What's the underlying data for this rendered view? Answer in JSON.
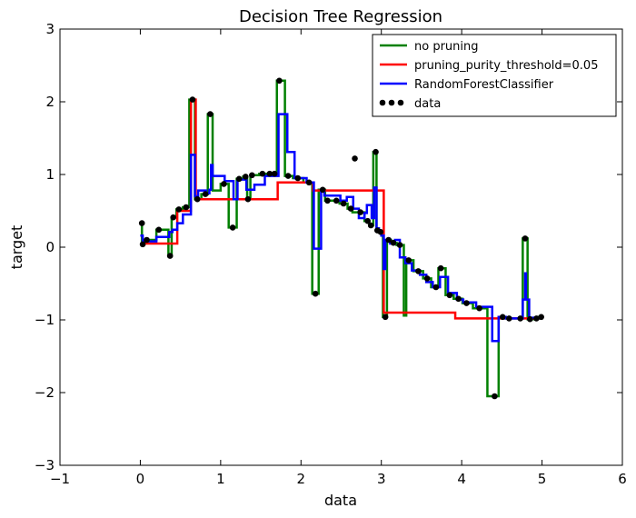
{
  "chart_data": {
    "type": "line",
    "title": "Decision Tree Regression",
    "xlabel": "data",
    "ylabel": "target",
    "xlim": [
      -1,
      6
    ],
    "ylim": [
      -3,
      3
    ],
    "xticks": [
      -1,
      0,
      1,
      2,
      3,
      4,
      5,
      6
    ],
    "xtick_labels": [
      "−1",
      "0",
      "1",
      "2",
      "3",
      "4",
      "5",
      "6"
    ],
    "yticks": [
      -3,
      -2,
      -1,
      0,
      1,
      2,
      3
    ],
    "ytick_labels": [
      "−3",
      "−2",
      "−1",
      "0",
      "1",
      "2",
      "3"
    ],
    "grid": false,
    "legend_position": "top-right",
    "scatter": {
      "name": "data",
      "color": "#000000",
      "points": [
        [
          0.02,
          0.33
        ],
        [
          0.03,
          0.04
        ],
        [
          0.08,
          0.1
        ],
        [
          0.23,
          0.24
        ],
        [
          0.37,
          -0.12
        ],
        [
          0.41,
          0.41
        ],
        [
          0.48,
          0.52
        ],
        [
          0.57,
          0.55
        ],
        [
          0.65,
          2.03
        ],
        [
          0.71,
          0.66
        ],
        [
          0.81,
          0.73
        ],
        [
          0.87,
          1.83
        ],
        [
          1.04,
          0.87
        ],
        [
          1.15,
          0.27
        ],
        [
          1.23,
          0.94
        ],
        [
          1.31,
          0.97
        ],
        [
          1.34,
          0.66
        ],
        [
          1.39,
          0.99
        ],
        [
          1.52,
          1.01
        ],
        [
          1.61,
          1.01
        ],
        [
          1.67,
          1.01
        ],
        [
          1.73,
          2.29
        ],
        [
          1.84,
          0.98
        ],
        [
          1.96,
          0.95
        ],
        [
          2.1,
          0.89
        ],
        [
          2.18,
          -0.64
        ],
        [
          2.27,
          0.79
        ],
        [
          2.33,
          0.64
        ],
        [
          2.44,
          0.64
        ],
        [
          2.53,
          0.6
        ],
        [
          2.62,
          0.53
        ],
        [
          2.67,
          1.22
        ],
        [
          2.74,
          0.48
        ],
        [
          2.83,
          0.36
        ],
        [
          2.87,
          0.3
        ],
        [
          2.93,
          1.31
        ],
        [
          2.95,
          0.23
        ],
        [
          2.99,
          0.21
        ],
        [
          3.05,
          -0.96
        ],
        [
          3.09,
          0.1
        ],
        [
          3.15,
          0.06
        ],
        [
          3.23,
          0.03
        ],
        [
          3.34,
          -0.18
        ],
        [
          3.46,
          -0.33
        ],
        [
          3.57,
          -0.43
        ],
        [
          3.68,
          -0.55
        ],
        [
          3.74,
          -0.29
        ],
        [
          3.85,
          -0.66
        ],
        [
          3.96,
          -0.71
        ],
        [
          4.06,
          -0.77
        ],
        [
          4.22,
          -0.84
        ],
        [
          4.41,
          -2.05
        ],
        [
          4.51,
          -0.96
        ],
        [
          4.59,
          -0.98
        ],
        [
          4.73,
          -0.98
        ],
        [
          4.79,
          0.12
        ],
        [
          4.85,
          -0.99
        ],
        [
          4.93,
          -0.98
        ],
        [
          4.99,
          -0.96
        ]
      ]
    },
    "series": [
      {
        "name": "no pruning",
        "color": "#008000",
        "points": [
          [
            0.0,
            0.33
          ],
          [
            0.02,
            0.33
          ],
          [
            0.02,
            0.04
          ],
          [
            0.05,
            0.04
          ],
          [
            0.05,
            0.1
          ],
          [
            0.2,
            0.1
          ],
          [
            0.2,
            0.24
          ],
          [
            0.35,
            0.24
          ],
          [
            0.35,
            -0.12
          ],
          [
            0.39,
            -0.12
          ],
          [
            0.39,
            0.41
          ],
          [
            0.45,
            0.41
          ],
          [
            0.45,
            0.52
          ],
          [
            0.53,
            0.52
          ],
          [
            0.53,
            0.55
          ],
          [
            0.61,
            0.55
          ],
          [
            0.61,
            2.03
          ],
          [
            0.68,
            2.03
          ],
          [
            0.68,
            0.66
          ],
          [
            0.76,
            0.66
          ],
          [
            0.76,
            0.73
          ],
          [
            0.84,
            0.73
          ],
          [
            0.84,
            1.83
          ],
          [
            0.9,
            1.83
          ],
          [
            0.9,
            0.78
          ],
          [
            1.0,
            0.78
          ],
          [
            1.0,
            0.87
          ],
          [
            1.1,
            0.87
          ],
          [
            1.1,
            0.27
          ],
          [
            1.2,
            0.27
          ],
          [
            1.2,
            0.94
          ],
          [
            1.28,
            0.94
          ],
          [
            1.28,
            0.97
          ],
          [
            1.33,
            0.97
          ],
          [
            1.33,
            0.66
          ],
          [
            1.37,
            0.66
          ],
          [
            1.37,
            0.99
          ],
          [
            1.48,
            0.99
          ],
          [
            1.48,
            1.01
          ],
          [
            1.7,
            1.01
          ],
          [
            1.7,
            2.29
          ],
          [
            1.8,
            2.29
          ],
          [
            1.8,
            0.98
          ],
          [
            1.9,
            0.98
          ],
          [
            1.9,
            0.95
          ],
          [
            2.03,
            0.95
          ],
          [
            2.03,
            0.89
          ],
          [
            2.14,
            0.89
          ],
          [
            2.14,
            -0.64
          ],
          [
            2.22,
            -0.64
          ],
          [
            2.22,
            0.79
          ],
          [
            2.3,
            0.79
          ],
          [
            2.3,
            0.64
          ],
          [
            2.48,
            0.64
          ],
          [
            2.48,
            0.6
          ],
          [
            2.58,
            0.6
          ],
          [
            2.58,
            0.53
          ],
          [
            2.64,
            0.53
          ],
          [
            2.64,
            0.48
          ],
          [
            2.79,
            0.48
          ],
          [
            2.79,
            0.36
          ],
          [
            2.85,
            0.36
          ],
          [
            2.85,
            0.3
          ],
          [
            2.9,
            0.3
          ],
          [
            2.9,
            1.31
          ],
          [
            2.94,
            1.31
          ],
          [
            2.94,
            0.23
          ],
          [
            2.97,
            0.23
          ],
          [
            2.97,
            0.21
          ],
          [
            3.02,
            0.21
          ],
          [
            3.02,
            -0.96
          ],
          [
            3.07,
            -0.96
          ],
          [
            3.07,
            0.1
          ],
          [
            3.12,
            0.1
          ],
          [
            3.12,
            0.06
          ],
          [
            3.19,
            0.06
          ],
          [
            3.19,
            0.03
          ],
          [
            3.28,
            0.03
          ],
          [
            3.28,
            -0.94
          ],
          [
            3.31,
            -0.94
          ],
          [
            3.31,
            -0.18
          ],
          [
            3.4,
            -0.18
          ],
          [
            3.4,
            -0.33
          ],
          [
            3.52,
            -0.33
          ],
          [
            3.52,
            -0.43
          ],
          [
            3.62,
            -0.43
          ],
          [
            3.62,
            -0.55
          ],
          [
            3.71,
            -0.55
          ],
          [
            3.71,
            -0.29
          ],
          [
            3.8,
            -0.29
          ],
          [
            3.8,
            -0.66
          ],
          [
            3.9,
            -0.66
          ],
          [
            3.9,
            -0.71
          ],
          [
            4.01,
            -0.71
          ],
          [
            4.01,
            -0.77
          ],
          [
            4.14,
            -0.77
          ],
          [
            4.14,
            -0.84
          ],
          [
            4.32,
            -0.84
          ],
          [
            4.32,
            -2.05
          ],
          [
            4.46,
            -2.05
          ],
          [
            4.46,
            -0.96
          ],
          [
            4.55,
            -0.96
          ],
          [
            4.55,
            -0.98
          ],
          [
            4.76,
            -0.98
          ],
          [
            4.76,
            0.12
          ],
          [
            4.82,
            0.12
          ],
          [
            4.82,
            -0.99
          ],
          [
            4.89,
            -0.99
          ],
          [
            4.89,
            -0.98
          ],
          [
            4.96,
            -0.98
          ],
          [
            4.96,
            -0.96
          ],
          [
            5.0,
            -0.96
          ]
        ]
      },
      {
        "name": "pruning_purity_threshold=0.05",
        "color": "#ff0000",
        "points": [
          [
            0.0,
            0.04
          ],
          [
            0.05,
            0.04
          ],
          [
            0.05,
            0.05
          ],
          [
            0.46,
            0.05
          ],
          [
            0.46,
            0.5
          ],
          [
            0.63,
            0.5
          ],
          [
            0.63,
            2.03
          ],
          [
            0.69,
            2.03
          ],
          [
            0.69,
            0.66
          ],
          [
            1.71,
            0.66
          ],
          [
            1.71,
            0.89
          ],
          [
            2.15,
            0.89
          ],
          [
            2.15,
            0.78
          ],
          [
            3.03,
            0.78
          ],
          [
            3.03,
            -0.9
          ],
          [
            3.92,
            -0.9
          ],
          [
            3.92,
            -0.98
          ],
          [
            5.0,
            -0.98
          ]
        ]
      },
      {
        "name": "RandomForestClassifier",
        "color": "#0000ff",
        "points": [
          [
            0.0,
            0.16
          ],
          [
            0.03,
            0.16
          ],
          [
            0.03,
            0.08
          ],
          [
            0.2,
            0.08
          ],
          [
            0.2,
            0.14
          ],
          [
            0.36,
            0.14
          ],
          [
            0.36,
            0.21
          ],
          [
            0.4,
            0.21
          ],
          [
            0.4,
            0.24
          ],
          [
            0.46,
            0.24
          ],
          [
            0.46,
            0.33
          ],
          [
            0.53,
            0.33
          ],
          [
            0.53,
            0.45
          ],
          [
            0.63,
            0.45
          ],
          [
            0.63,
            1.27
          ],
          [
            0.68,
            1.27
          ],
          [
            0.68,
            0.7
          ],
          [
            0.72,
            0.7
          ],
          [
            0.72,
            0.78
          ],
          [
            0.82,
            0.78
          ],
          [
            0.82,
            0.74
          ],
          [
            0.86,
            0.74
          ],
          [
            0.86,
            0.79
          ],
          [
            0.88,
            0.79
          ],
          [
            0.88,
            1.13
          ],
          [
            0.9,
            1.13
          ],
          [
            0.9,
            0.98
          ],
          [
            1.05,
            0.98
          ],
          [
            1.05,
            0.91
          ],
          [
            1.16,
            0.91
          ],
          [
            1.16,
            0.66
          ],
          [
            1.21,
            0.66
          ],
          [
            1.21,
            0.93
          ],
          [
            1.32,
            0.93
          ],
          [
            1.32,
            0.79
          ],
          [
            1.42,
            0.79
          ],
          [
            1.42,
            0.86
          ],
          [
            1.55,
            0.86
          ],
          [
            1.55,
            0.98
          ],
          [
            1.72,
            0.98
          ],
          [
            1.72,
            1.83
          ],
          [
            1.83,
            1.83
          ],
          [
            1.83,
            1.31
          ],
          [
            1.92,
            1.31
          ],
          [
            1.92,
            0.95
          ],
          [
            2.07,
            0.95
          ],
          [
            2.07,
            0.89
          ],
          [
            2.16,
            0.89
          ],
          [
            2.16,
            -0.02
          ],
          [
            2.25,
            -0.02
          ],
          [
            2.25,
            0.78
          ],
          [
            2.29,
            0.78
          ],
          [
            2.29,
            0.71
          ],
          [
            2.49,
            0.71
          ],
          [
            2.49,
            0.64
          ],
          [
            2.57,
            0.64
          ],
          [
            2.57,
            0.69
          ],
          [
            2.65,
            0.69
          ],
          [
            2.65,
            0.53
          ],
          [
            2.72,
            0.53
          ],
          [
            2.72,
            0.4
          ],
          [
            2.79,
            0.4
          ],
          [
            2.79,
            0.47
          ],
          [
            2.82,
            0.47
          ],
          [
            2.82,
            0.58
          ],
          [
            2.88,
            0.58
          ],
          [
            2.88,
            0.4
          ],
          [
            2.91,
            0.4
          ],
          [
            2.91,
            0.82
          ],
          [
            2.94,
            0.82
          ],
          [
            2.94,
            0.26
          ],
          [
            2.97,
            0.26
          ],
          [
            2.97,
            0.21
          ],
          [
            3.0,
            0.21
          ],
          [
            3.0,
            0.16
          ],
          [
            3.03,
            0.16
          ],
          [
            3.03,
            -0.3
          ],
          [
            3.05,
            -0.3
          ],
          [
            3.05,
            0.1
          ],
          [
            3.11,
            0.1
          ],
          [
            3.11,
            0.05
          ],
          [
            3.17,
            0.05
          ],
          [
            3.17,
            0.1
          ],
          [
            3.23,
            0.1
          ],
          [
            3.23,
            -0.14
          ],
          [
            3.3,
            -0.14
          ],
          [
            3.3,
            -0.22
          ],
          [
            3.38,
            -0.22
          ],
          [
            3.38,
            -0.32
          ],
          [
            3.48,
            -0.32
          ],
          [
            3.48,
            -0.38
          ],
          [
            3.56,
            -0.38
          ],
          [
            3.56,
            -0.48
          ],
          [
            3.64,
            -0.48
          ],
          [
            3.64,
            -0.55
          ],
          [
            3.73,
            -0.55
          ],
          [
            3.73,
            -0.41
          ],
          [
            3.83,
            -0.41
          ],
          [
            3.83,
            -0.63
          ],
          [
            3.94,
            -0.63
          ],
          [
            3.94,
            -0.72
          ],
          [
            4.02,
            -0.72
          ],
          [
            4.02,
            -0.76
          ],
          [
            4.18,
            -0.76
          ],
          [
            4.18,
            -0.82
          ],
          [
            4.38,
            -0.82
          ],
          [
            4.38,
            -1.29
          ],
          [
            4.46,
            -1.29
          ],
          [
            4.46,
            -0.96
          ],
          [
            4.55,
            -0.96
          ],
          [
            4.55,
            -0.98
          ],
          [
            4.76,
            -0.98
          ],
          [
            4.76,
            -0.72
          ],
          [
            4.79,
            -0.72
          ],
          [
            4.79,
            -0.36
          ],
          [
            4.8,
            -0.36
          ],
          [
            4.8,
            -0.72
          ],
          [
            4.84,
            -0.72
          ],
          [
            4.84,
            -0.97
          ],
          [
            4.92,
            -0.97
          ],
          [
            4.92,
            -0.98
          ],
          [
            5.0,
            -0.98
          ]
        ]
      }
    ]
  }
}
